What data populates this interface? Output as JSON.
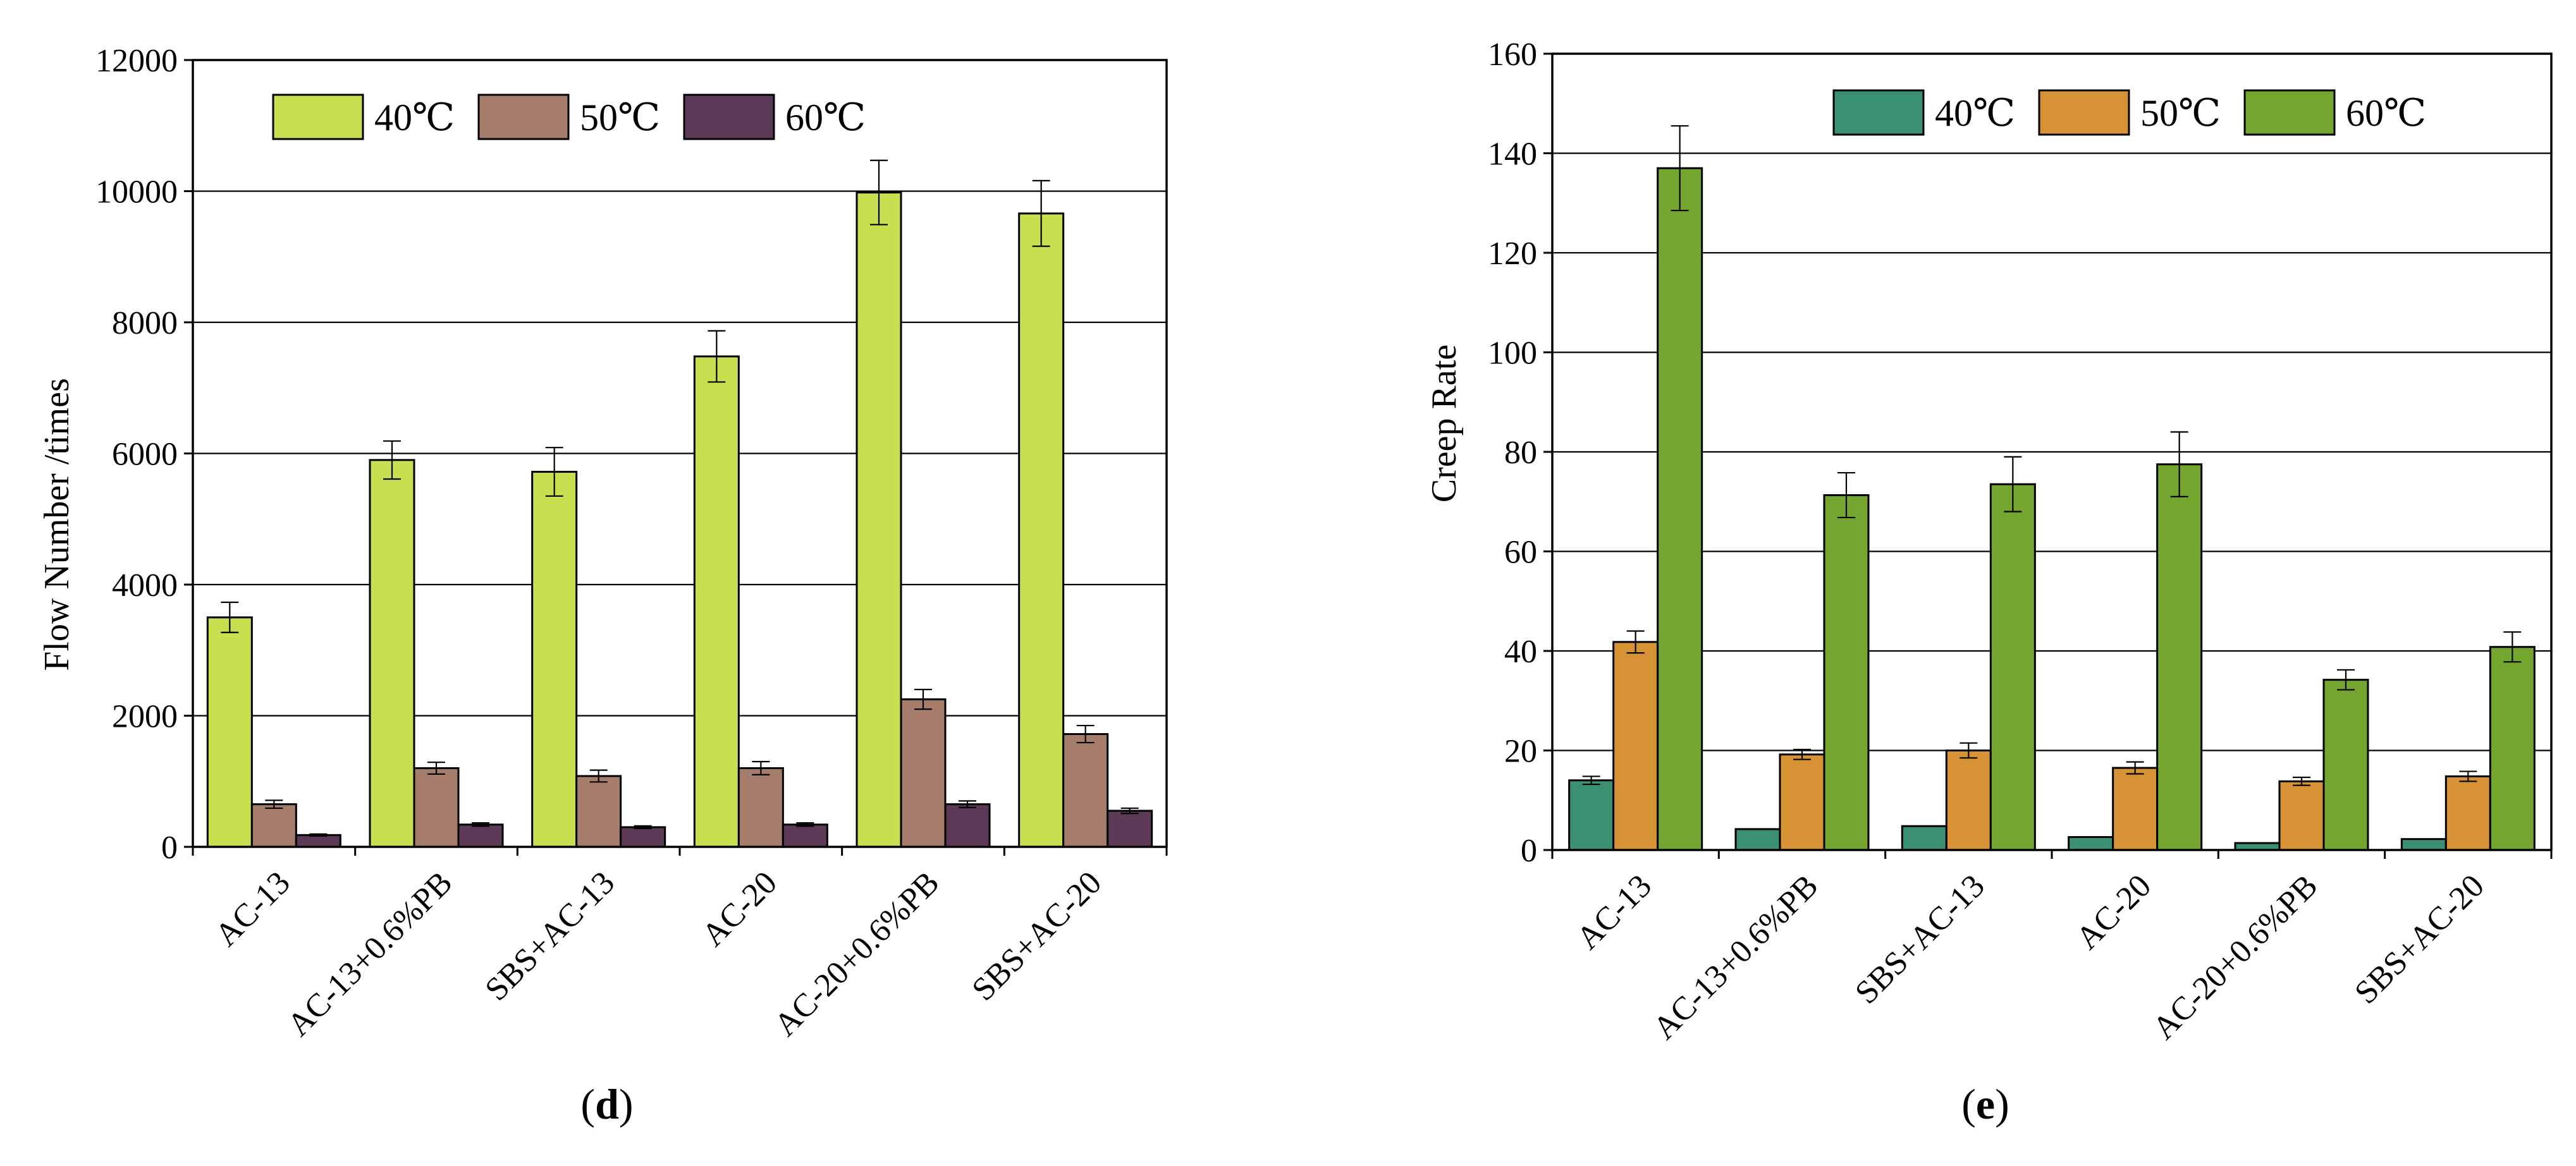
{
  "chart_data": [
    {
      "type": "bar",
      "panel_label": "d",
      "ylabel": "Flow Number /times",
      "xlabel": "",
      "ylim": [
        0,
        12000
      ],
      "yticks": [
        0,
        2000,
        4000,
        6000,
        8000,
        10000,
        12000
      ],
      "grid": true,
      "legend_position": "top-left",
      "categories": [
        "AC-13",
        "AC-13+0.6%PB",
        "SBS+AC-13",
        "AC-20",
        "AC-20+0.6%PB",
        "SBS+AC-20"
      ],
      "series": [
        {
          "name": "40℃",
          "color": "#c8e050",
          "values": [
            3500,
            5900,
            5720,
            7480,
            9980,
            9660
          ],
          "errors": [
            230,
            290,
            370,
            390,
            490,
            500
          ]
        },
        {
          "name": "50℃",
          "color": "#a67c6a",
          "values": [
            650,
            1200,
            1080,
            1200,
            2250,
            1720
          ],
          "errors": [
            60,
            90,
            90,
            100,
            150,
            130
          ]
        },
        {
          "name": "60℃",
          "color": "#5c3a57",
          "values": [
            180,
            340,
            300,
            340,
            650,
            550
          ],
          "errors": [
            15,
            25,
            20,
            25,
            50,
            40
          ]
        }
      ]
    },
    {
      "type": "bar",
      "panel_label": "e",
      "ylabel": "Creep Rate",
      "xlabel": "",
      "ylim": [
        0,
        160
      ],
      "yticks": [
        0,
        20,
        40,
        60,
        80,
        100,
        120,
        140,
        160
      ],
      "grid": true,
      "legend_position": "top-right",
      "categories": [
        "AC-13",
        "AC-13+0.6%PB",
        "SBS+AC-13",
        "AC-20",
        "AC-20+0.6%PB",
        "SBS+AC-20"
      ],
      "series": [
        {
          "name": "40℃",
          "color": "#3a9070",
          "values": [
            14,
            4.2,
            4.8,
            2.6,
            1.4,
            2.2
          ],
          "errors": [
            0.8,
            0,
            0,
            0,
            0,
            0
          ]
        },
        {
          "name": "50℃",
          "color": "#d89236",
          "values": [
            41.8,
            19.2,
            20,
            16.5,
            13.8,
            14.8
          ],
          "errors": [
            2.2,
            1.0,
            1.5,
            1.2,
            0.8,
            1.0
          ]
        },
        {
          "name": "60℃",
          "color": "#74a52e",
          "values": [
            137,
            71.3,
            73.5,
            77.5,
            34.2,
            40.8
          ],
          "errors": [
            8.5,
            4.5,
            5.5,
            6.5,
            2.0,
            3.0
          ]
        }
      ]
    }
  ]
}
